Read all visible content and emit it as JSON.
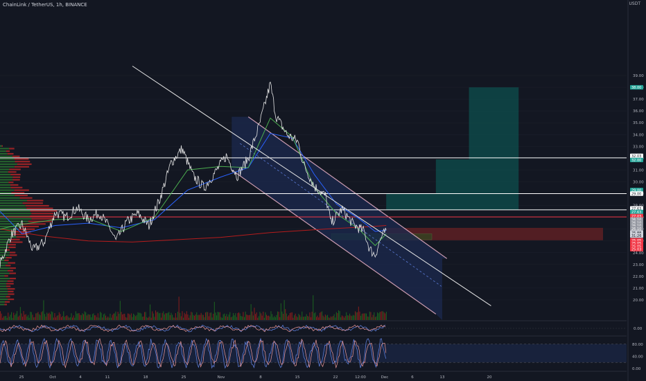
{
  "header": {
    "symbol_title": "ChainLink / TetherUS, 1h, BINANCE",
    "axis_unit": "USDT"
  },
  "colors": {
    "background": "#131722",
    "price_line": "#e6e6e6",
    "ema_blue": "#2962ff",
    "ema_green": "#4caf50",
    "ma_red": "#b71c1c",
    "channel_fill": "#1c2a4f",
    "target_teal": "#0d4f4d",
    "stop_red": "#5a1f23",
    "volume_green": "#1b5e20",
    "volume_red": "#7f1d1d",
    "profile_green": "#2e7d32",
    "profile_red": "#c62828",
    "resistance_red": "#f23645",
    "axis_text": "#b2b5be"
  },
  "chart_data": {
    "type": "line",
    "title": "ChainLink / TetherUS, 1h, BINANCE",
    "ylabel": "USDT",
    "ylim": [
      19.0,
      39.0
    ],
    "y_ticks": [
      "39.00",
      "38.00",
      "37.00",
      "36.00",
      "35.00",
      "34.00",
      "33.00",
      "32.00",
      "31.00",
      "30.00",
      "29.00",
      "28.00",
      "27.00",
      "26.00",
      "25.00",
      "24.00",
      "23.00",
      "22.00",
      "21.00",
      "20.00"
    ],
    "x_ticks": [
      "25",
      "Oct",
      "4",
      "11",
      "18",
      "25",
      "Nov",
      "8",
      "15",
      "22",
      "12:00",
      "Dec",
      "6",
      "13",
      "20"
    ],
    "price_series": {
      "name": "",
      "points": [
        [
          "Sep 22",
          23.0
        ],
        [
          "Sep 24",
          25.5
        ],
        [
          "Sep 26",
          26.4
        ],
        [
          "Sep 28",
          24.2
        ],
        [
          "Sep 30",
          24.9
        ],
        [
          "Oct 2",
          27.4
        ],
        [
          "Oct 4",
          27.0
        ],
        [
          "Oct 6",
          27.8
        ],
        [
          "Oct 8",
          26.8
        ],
        [
          "Oct 10",
          27.4
        ],
        [
          "Oct 12",
          26.0
        ],
        [
          "Oct 13",
          25.0
        ],
        [
          "Oct 15",
          26.6
        ],
        [
          "Oct 17",
          27.3
        ],
        [
          "Oct 19",
          26.3
        ],
        [
          "Oct 21",
          28.6
        ],
        [
          "Oct 23",
          31.6
        ],
        [
          "Oct 25",
          32.8
        ],
        [
          "Oct 27",
          30.5
        ],
        [
          "Oct 29",
          29.5
        ],
        [
          "Oct 31",
          30.8
        ],
        [
          "Nov 2",
          32.2
        ],
        [
          "Nov 4",
          30.5
        ],
        [
          "Nov 6",
          32.0
        ],
        [
          "Nov 8",
          34.8
        ],
        [
          "Nov 10",
          38.3
        ],
        [
          "Nov 11",
          35.6
        ],
        [
          "Nov 13",
          34.0
        ],
        [
          "Nov 15",
          33.4
        ],
        [
          "Nov 16",
          31.5
        ],
        [
          "Nov 18",
          29.6
        ],
        [
          "Nov 20",
          28.8
        ],
        [
          "Nov 21",
          26.5
        ],
        [
          "Nov 23",
          27.7
        ],
        [
          "Nov 25",
          26.4
        ],
        [
          "Nov 27",
          25.8
        ],
        [
          "Nov 28",
          24.3
        ],
        [
          "Nov 29",
          23.8
        ],
        [
          "Nov 30",
          25.2
        ],
        [
          "Dec 1",
          25.9
        ]
      ]
    },
    "ema_blue": {
      "points": [
        [
          "Sep 22",
          27.5
        ],
        [
          "Sep 26",
          25.6
        ],
        [
          "Oct 2",
          26.3
        ],
        [
          "Oct 8",
          26.5
        ],
        [
          "Oct 14",
          26.1
        ],
        [
          "Oct 20",
          26.8
        ],
        [
          "Oct 26",
          29.3
        ],
        [
          "Nov 1",
          30.4
        ],
        [
          "Nov 6",
          31.2
        ],
        [
          "Nov 10",
          34.1
        ],
        [
          "Nov 14",
          33.7
        ],
        [
          "Nov 18",
          30.6
        ],
        [
          "Nov 22",
          28.1
        ],
        [
          "Nov 26",
          26.9
        ],
        [
          "Nov 29",
          25.8
        ],
        [
          "Dec 1",
          25.9
        ]
      ]
    },
    "ema_green": {
      "points": [
        [
          "Sep 22",
          26.0
        ],
        [
          "Sep 26",
          26.4
        ],
        [
          "Oct 2",
          26.8
        ],
        [
          "Oct 8",
          26.9
        ],
        [
          "Oct 14",
          25.8
        ],
        [
          "Oct 20",
          27.0
        ],
        [
          "Oct 26",
          31.0
        ],
        [
          "Nov 1",
          31.3
        ],
        [
          "Nov 6",
          31.2
        ],
        [
          "Nov 10",
          35.4
        ],
        [
          "Nov 14",
          33.8
        ],
        [
          "Nov 18",
          29.5
        ],
        [
          "Nov 22",
          27.3
        ],
        [
          "Nov 26",
          26.0
        ],
        [
          "Nov 29",
          24.6
        ],
        [
          "Dec 1",
          25.6
        ]
      ]
    },
    "ma_red": {
      "points": [
        [
          "Sep 22",
          26.0
        ],
        [
          "Sep 30",
          25.4
        ],
        [
          "Oct 8",
          25.0
        ],
        [
          "Oct 16",
          24.9
        ],
        [
          "Oct 24",
          25.1
        ],
        [
          "Nov 1",
          25.3
        ],
        [
          "Nov 10",
          25.7
        ],
        [
          "Nov 20",
          26.0
        ],
        [
          "Nov 28",
          26.2
        ],
        [
          "Dec 1",
          26.3
        ]
      ]
    },
    "channel": {
      "upper_start": [
        "Nov 6",
        35.5
      ],
      "upper_end": [
        "Dec 12",
        23.5
      ],
      "lower_start": [
        "Nov 3",
        31.0
      ],
      "lower_end": [
        "Dec 10",
        18.8
      ]
    },
    "trendline": {
      "start": [
        "Oct 16",
        39.8
      ],
      "end": [
        "Dec 20",
        19.5
      ]
    },
    "horizontal_levels": [
      {
        "price": 32.03,
        "color": "#ffffff"
      },
      {
        "price": 29.0,
        "color": "#ffffff"
      },
      {
        "price": 27.63,
        "color": "#ffffff"
      },
      {
        "price": 27.03,
        "color": "#f23645"
      }
    ],
    "target_zones": [
      {
        "from": 27.63,
        "to": 29.0,
        "start": "Dec 1",
        "end": "Dec 25"
      },
      {
        "from": 29.0,
        "to": 31.9,
        "start": "Dec 10",
        "end": "Dec 25"
      },
      {
        "from": 31.9,
        "to": 38.0,
        "start": "Dec 16",
        "end": "Dec 25"
      }
    ],
    "stop_zone": {
      "from": 25.05,
      "to": 26.1,
      "start": "Dec 1",
      "end": "Dec 25"
    },
    "price_labels": [
      {
        "text": "38.00",
        "price": 38.0,
        "bg": "#26a69a"
      },
      {
        "text": "32.03",
        "price": 32.2,
        "bg": "#ffffff"
      },
      {
        "text": "32.00",
        "price": 31.85,
        "bg": "#26a69a"
      },
      {
        "text": "29.00",
        "price": 29.3,
        "bg": "#26a69a"
      },
      {
        "text": "29.00",
        "price": 29.0,
        "bg": "#ffffff"
      },
      {
        "text": "27.63",
        "price": 27.75,
        "bg": "#ffffff"
      },
      {
        "text": "27.63",
        "price": 27.45,
        "bg": "#26a69a"
      },
      {
        "text": "27.03",
        "price": 27.1,
        "bg": "#f23645"
      },
      {
        "text": "26.10",
        "price": 26.8,
        "bg": "#9598a1"
      },
      {
        "text": "26.10",
        "price": 26.55,
        "bg": "#9598a1"
      },
      {
        "text": "26.10",
        "price": 26.3,
        "bg": "#9598a1"
      },
      {
        "text": "26.10",
        "price": 26.05,
        "bg": "#9598a1"
      },
      {
        "text": "25.88",
        "price": 25.7,
        "bg": "#d1d4dc"
      },
      {
        "text": "31:26",
        "price": 25.45,
        "bg": "#d1d4dc"
      },
      {
        "text": "25.05",
        "price": 25.05,
        "bg": "#f23645"
      },
      {
        "text": "25.05",
        "price": 24.8,
        "bg": "#f23645"
      },
      {
        "text": "25.05",
        "price": 24.55,
        "bg": "#f23645"
      },
      {
        "text": "25.03",
        "price": 24.3,
        "bg": "#f23645"
      }
    ],
    "oscillator1": {
      "ticks": [
        "0.00"
      ],
      "level": 0
    },
    "oscillator2": {
      "ticks": [
        "80.00",
        "40.00",
        "0.00"
      ],
      "band": [
        20,
        80
      ]
    }
  }
}
